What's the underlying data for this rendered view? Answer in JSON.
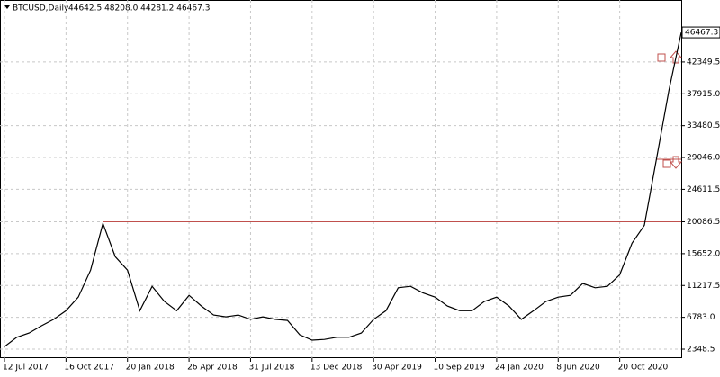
{
  "chart_data": {
    "type": "line",
    "title": "BTCUSD,Daily",
    "subtitle": "44642.5 48208.0 44281.2 46467.3",
    "price_label": "46467.3",
    "categories": [
      "12 Jul 2017",
      null,
      null,
      null,
      null,
      "16 Oct 2017",
      null,
      null,
      null,
      null,
      "20 Jan 2018",
      null,
      null,
      null,
      null,
      "26 Apr 2018",
      null,
      null,
      null,
      null,
      "31 Jul 2018",
      null,
      null,
      null,
      null,
      "13 Dec 2018",
      null,
      null,
      null,
      null,
      "30 Apr 2019",
      null,
      null,
      null,
      null,
      "10 Sep 2019",
      null,
      null,
      null,
      null,
      "24 Jan 2020",
      null,
      null,
      null,
      null,
      "8 Jun 2020",
      null,
      null,
      null,
      null,
      "20 Oct 2020",
      null,
      null,
      null,
      null,
      null
    ],
    "values": [
      2700,
      4000,
      4600,
      5600,
      6500,
      7700,
      9600,
      13360,
      19860,
      15230,
      13360,
      7700,
      11100,
      9000,
      7700,
      9850,
      8350,
      7100,
      6850,
      7100,
      6500,
      6850,
      6500,
      6350,
      4350,
      3600,
      3700,
      4000,
      4000,
      4600,
      6500,
      7700,
      10900,
      11100,
      10200,
      9600,
      8350,
      7700,
      7700,
      9000,
      9600,
      8350,
      6500,
      7700,
      9000,
      9600,
      9850,
      11500,
      10900,
      11100,
      12700,
      17100,
      19600,
      29000,
      38400,
      46467.3
    ],
    "color": "#000000",
    "ylim": [
      1097,
      47228
    ],
    "yticks": [
      2348.5,
      {
        "value": 6783,
        "label": "6783.0"
      },
      11217.5,
      {
        "value": 15652,
        "label": "15652.0"
      },
      20086.5,
      24611.5,
      {
        "value": 29046,
        "label": "29046.0"
      },
      33480.5,
      {
        "value": 37915,
        "label": "37915.0"
      },
      42349.5
    ],
    "levels": [
      20086.5,
      41900,
      28800
    ],
    "level_color": "#c0504d",
    "grid": true
  }
}
